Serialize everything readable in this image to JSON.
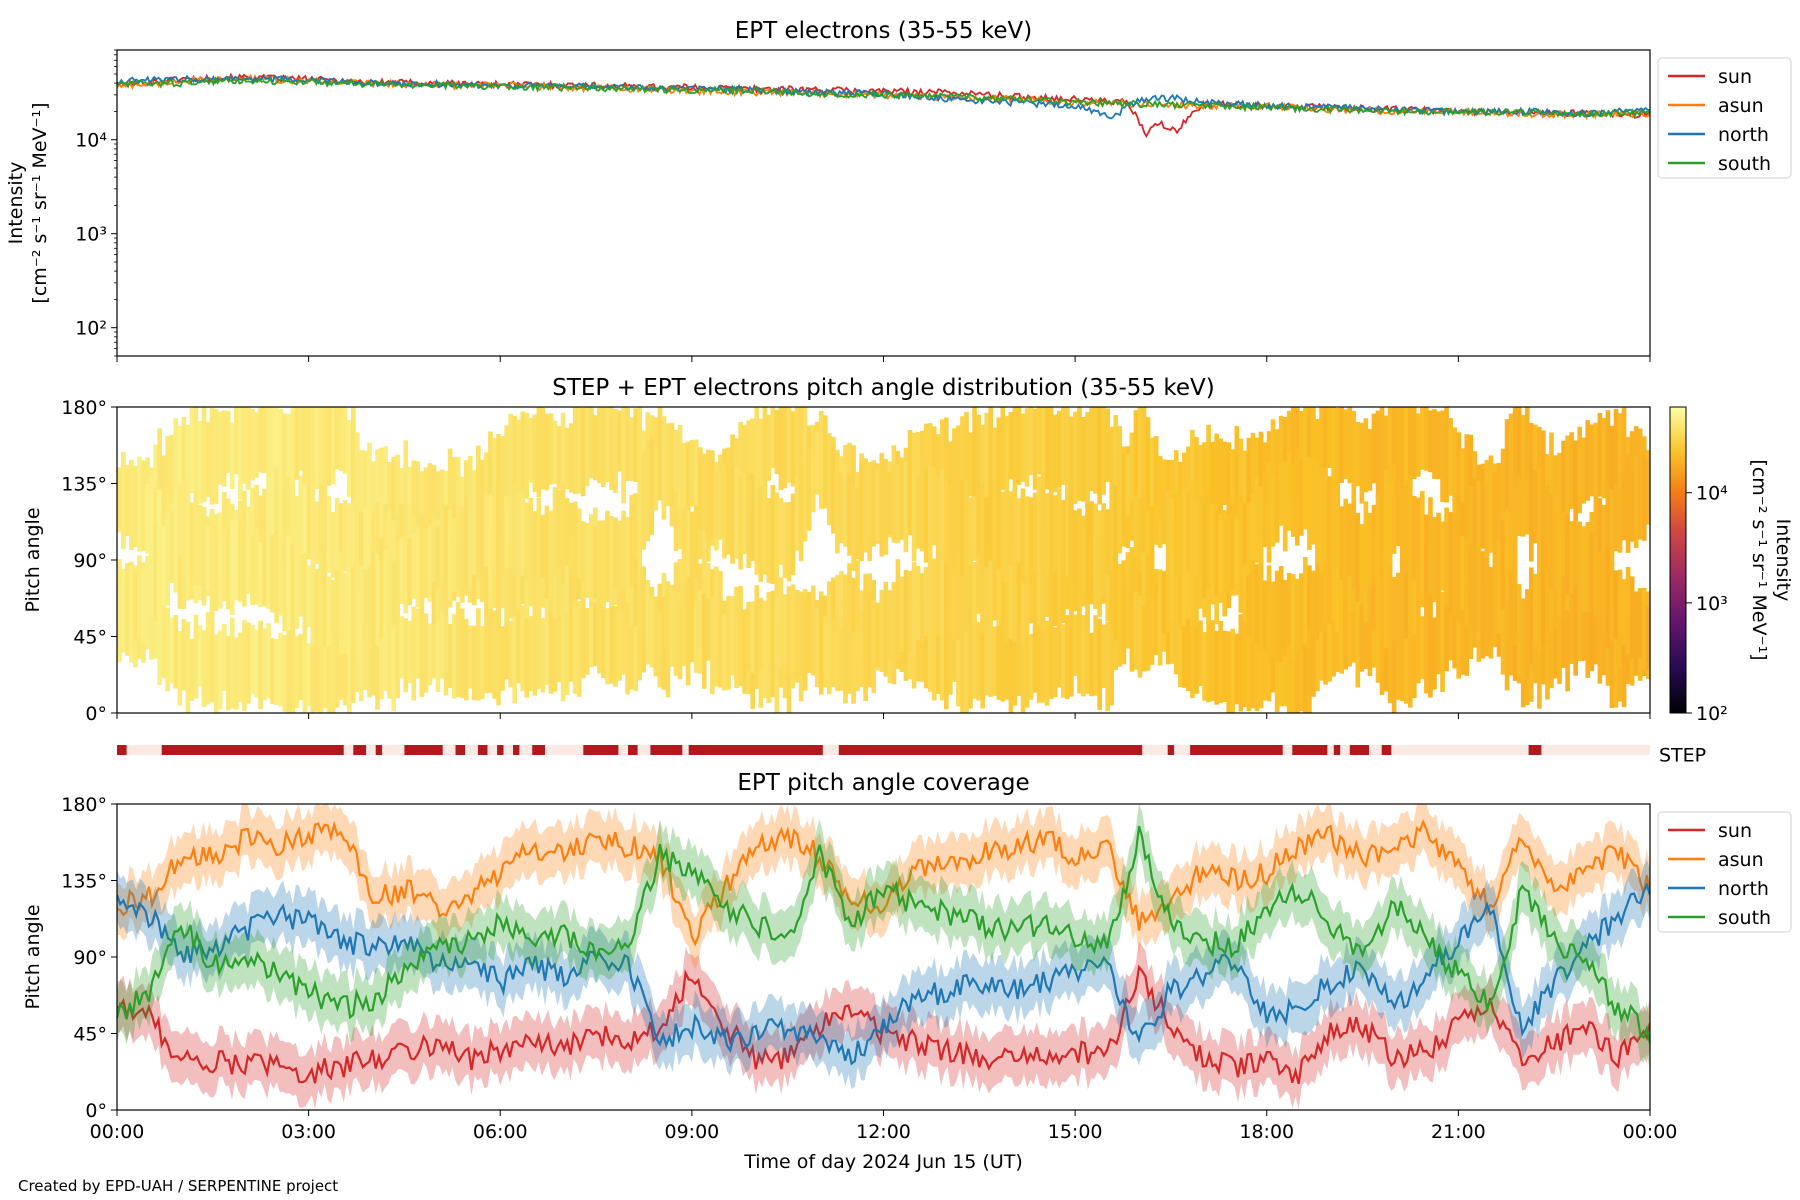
{
  "footer": {
    "credit": "Created by EPD-UAH / SERPENTINE project"
  },
  "colors": {
    "sun": "#d62728",
    "asun": "#ff7f0e",
    "north": "#1f77b4",
    "south": "#2ca02c",
    "step_bar": "#b01a1f",
    "step_bg": "#fbe9e4"
  },
  "chart_data": [
    {
      "type": "line",
      "title": "EPT electrons (35-55 keV)",
      "ylabel_line1": "Intensity",
      "ylabel_line2": "[cm⁻² s⁻¹ sr⁻¹ MeV⁻¹]",
      "yscale": "log",
      "ylim": [
        50,
        90000
      ],
      "yticks": [
        {
          "value": 100,
          "label": "10²"
        },
        {
          "value": 1000,
          "label": "10³"
        },
        {
          "value": 10000,
          "label": "10⁴"
        }
      ],
      "legend": [
        "sun",
        "asun",
        "north",
        "south"
      ],
      "legend_position": "right",
      "series": [
        {
          "name": "sun",
          "x_hours": [
            0,
            1,
            2,
            3,
            4,
            5,
            6,
            7,
            8,
            9,
            10,
            11,
            12,
            13,
            14,
            15,
            15.8,
            16.1,
            16.3,
            16.6,
            17,
            18,
            19,
            20,
            21,
            22,
            23,
            24
          ],
          "values": [
            38000,
            44000,
            46000,
            44000,
            41000,
            40000,
            39000,
            38000,
            37000,
            36000,
            35000,
            34000,
            33000,
            32000,
            29000,
            27000,
            25000,
            11000,
            15000,
            12000,
            24000,
            23000,
            22000,
            21000,
            20000,
            19500,
            19000,
            18500
          ]
        },
        {
          "name": "asun",
          "x_hours": [
            0,
            1,
            2,
            3,
            4,
            5,
            6,
            7,
            8,
            9,
            10,
            11,
            12,
            13,
            14,
            15,
            16,
            17,
            18,
            19,
            20,
            21,
            22,
            23,
            24
          ],
          "values": [
            37000,
            42000,
            45000,
            42000,
            40000,
            38000,
            38000,
            36000,
            35000,
            33000,
            32000,
            31000,
            30000,
            28000,
            27000,
            25000,
            24000,
            23000,
            23000,
            21000,
            20000,
            20000,
            19000,
            18500,
            19000
          ]
        },
        {
          "name": "north",
          "x_hours": [
            0,
            1,
            2,
            3,
            4,
            5,
            6,
            7,
            8,
            9,
            10,
            11,
            12,
            13,
            14,
            15,
            15.6,
            16,
            16.5,
            17,
            18,
            19,
            20,
            21,
            22,
            23,
            24
          ],
          "values": [
            42000,
            44000,
            45000,
            43000,
            40000,
            39000,
            38000,
            37000,
            36000,
            35000,
            34000,
            32000,
            31000,
            27000,
            25000,
            23000,
            17000,
            27000,
            28000,
            25000,
            23000,
            22000,
            21000,
            20000,
            20000,
            19000,
            21000
          ]
        },
        {
          "name": "south",
          "x_hours": [
            0,
            1,
            2,
            3,
            4,
            5,
            6,
            7,
            8,
            9,
            10,
            11,
            12,
            13,
            14,
            15,
            16,
            17,
            18,
            19,
            20,
            21,
            22,
            23,
            24
          ],
          "values": [
            39000,
            40000,
            43000,
            41000,
            39000,
            38000,
            37000,
            36000,
            35000,
            34000,
            33000,
            31000,
            30000,
            29000,
            27000,
            25000,
            24000,
            23000,
            22000,
            21000,
            20000,
            20000,
            19500,
            19000,
            19500
          ]
        }
      ]
    },
    {
      "type": "heatmap",
      "title": "STEP + EPT electrons pitch angle distribution (35-55 keV)",
      "ylabel": "Pitch angle",
      "ylim": [
        0,
        180
      ],
      "yticks": [
        {
          "value": 0,
          "label": "0°"
        },
        {
          "value": 45,
          "label": "45°"
        },
        {
          "value": 90,
          "label": "90°"
        },
        {
          "value": 135,
          "label": "135°"
        },
        {
          "value": 180,
          "label": "180°"
        }
      ],
      "colorbar": {
        "label_line1": "Intensity",
        "label_line2": "[cm⁻² s⁻¹ sr⁻¹ MeV⁻¹]",
        "scale": "log",
        "range": [
          100,
          60000
        ],
        "colormap": "inferno",
        "ticks": [
          {
            "value": 100,
            "label": "10²"
          },
          {
            "value": 1000,
            "label": "10³"
          },
          {
            "value": 10000,
            "label": "10⁴"
          }
        ]
      },
      "intensity_trend": {
        "x_hours": [
          0,
          3,
          6,
          9,
          12,
          15,
          18,
          21,
          24
        ],
        "values": [
          44000,
          43000,
          38000,
          35000,
          32000,
          27000,
          22000,
          20000,
          19000
        ]
      }
    },
    {
      "type": "timeline",
      "label": "STEP",
      "available_intervals_hours": [
        [
          0.0,
          0.15
        ],
        [
          0.7,
          3.55
        ],
        [
          3.7,
          3.9
        ],
        [
          4.05,
          4.15
        ],
        [
          4.5,
          5.1
        ],
        [
          5.3,
          5.45
        ],
        [
          5.65,
          5.8
        ],
        [
          5.95,
          6.05
        ],
        [
          6.2,
          6.3
        ],
        [
          6.5,
          6.7
        ],
        [
          7.3,
          7.85
        ],
        [
          8.0,
          8.15
        ],
        [
          8.35,
          8.85
        ],
        [
          8.95,
          11.05
        ],
        [
          11.3,
          16.05
        ],
        [
          16.45,
          16.55
        ],
        [
          16.8,
          18.25
        ],
        [
          18.4,
          18.95
        ],
        [
          19.05,
          19.15
        ],
        [
          19.3,
          19.6
        ],
        [
          19.8,
          19.95
        ],
        [
          22.1,
          22.3
        ]
      ]
    },
    {
      "type": "line",
      "title": "EPT pitch angle coverage",
      "ylabel": "Pitch angle",
      "xlabel": "Time of day 2024 Jun 15 (UT)",
      "xlim_hours": [
        0,
        24
      ],
      "xticks": [
        "00:00",
        "03:00",
        "06:00",
        "09:00",
        "12:00",
        "15:00",
        "18:00",
        "21:00",
        "00:00"
      ],
      "ylim": [
        0,
        180
      ],
      "yticks": [
        {
          "value": 0,
          "label": "0°"
        },
        {
          "value": 45,
          "label": "45°"
        },
        {
          "value": 90,
          "label": "90°"
        },
        {
          "value": 135,
          "label": "135°"
        },
        {
          "value": 180,
          "label": "180°"
        }
      ],
      "legend": [
        "sun",
        "asun",
        "north",
        "south"
      ],
      "legend_position": "right",
      "band_halfwidth_deg": 15,
      "x_hours": [
        0,
        0.5,
        1,
        1.5,
        2,
        2.5,
        3,
        3.5,
        4,
        4.5,
        5,
        5.5,
        6,
        6.5,
        7,
        7.5,
        8,
        8.5,
        9,
        9.5,
        10,
        10.5,
        11,
        11.5,
        12,
        12.5,
        13,
        13.5,
        14,
        14.5,
        15,
        15.5,
        16,
        16.5,
        17,
        17.5,
        18,
        18.5,
        19,
        19.5,
        20,
        20.5,
        21,
        21.5,
        22,
        22.5,
        23,
        23.5,
        24
      ],
      "series": [
        {
          "name": "sun",
          "values": [
            62,
            55,
            30,
            28,
            28,
            25,
            22,
            25,
            30,
            35,
            40,
            30,
            35,
            40,
            35,
            45,
            40,
            50,
            80,
            50,
            30,
            30,
            50,
            60,
            45,
            40,
            35,
            30,
            30,
            30,
            35,
            30,
            80,
            50,
            30,
            25,
            30,
            20,
            45,
            50,
            30,
            35,
            50,
            60,
            30,
            40,
            50,
            30,
            50
          ]
        },
        {
          "name": "asun",
          "values": [
            120,
            125,
            150,
            150,
            160,
            155,
            160,
            165,
            125,
            130,
            120,
            125,
            140,
            155,
            150,
            160,
            155,
            150,
            100,
            130,
            155,
            160,
            150,
            125,
            120,
            140,
            145,
            150,
            155,
            160,
            150,
            155,
            110,
            125,
            140,
            135,
            140,
            155,
            160,
            150,
            155,
            165,
            140,
            120,
            160,
            130,
            145,
            150,
            130
          ]
        },
        {
          "name": "north",
          "values": [
            128,
            115,
            90,
            95,
            105,
            115,
            110,
            100,
            95,
            100,
            85,
            90,
            75,
            85,
            80,
            90,
            85,
            40,
            50,
            40,
            45,
            50,
            40,
            30,
            50,
            65,
            70,
            75,
            70,
            75,
            80,
            85,
            40,
            70,
            80,
            90,
            55,
            60,
            75,
            85,
            60,
            80,
            100,
            120,
            45,
            75,
            95,
            115,
            130
          ]
        },
        {
          "name": "south",
          "values": [
            55,
            70,
            110,
            85,
            90,
            80,
            70,
            60,
            65,
            80,
            95,
            100,
            110,
            100,
            105,
            90,
            95,
            150,
            140,
            120,
            110,
            100,
            150,
            110,
            130,
            120,
            115,
            110,
            105,
            110,
            100,
            95,
            160,
            110,
            100,
            95,
            120,
            130,
            110,
            90,
            120,
            100,
            80,
            60,
            130,
            100,
            85,
            60,
            45
          ]
        }
      ]
    }
  ]
}
